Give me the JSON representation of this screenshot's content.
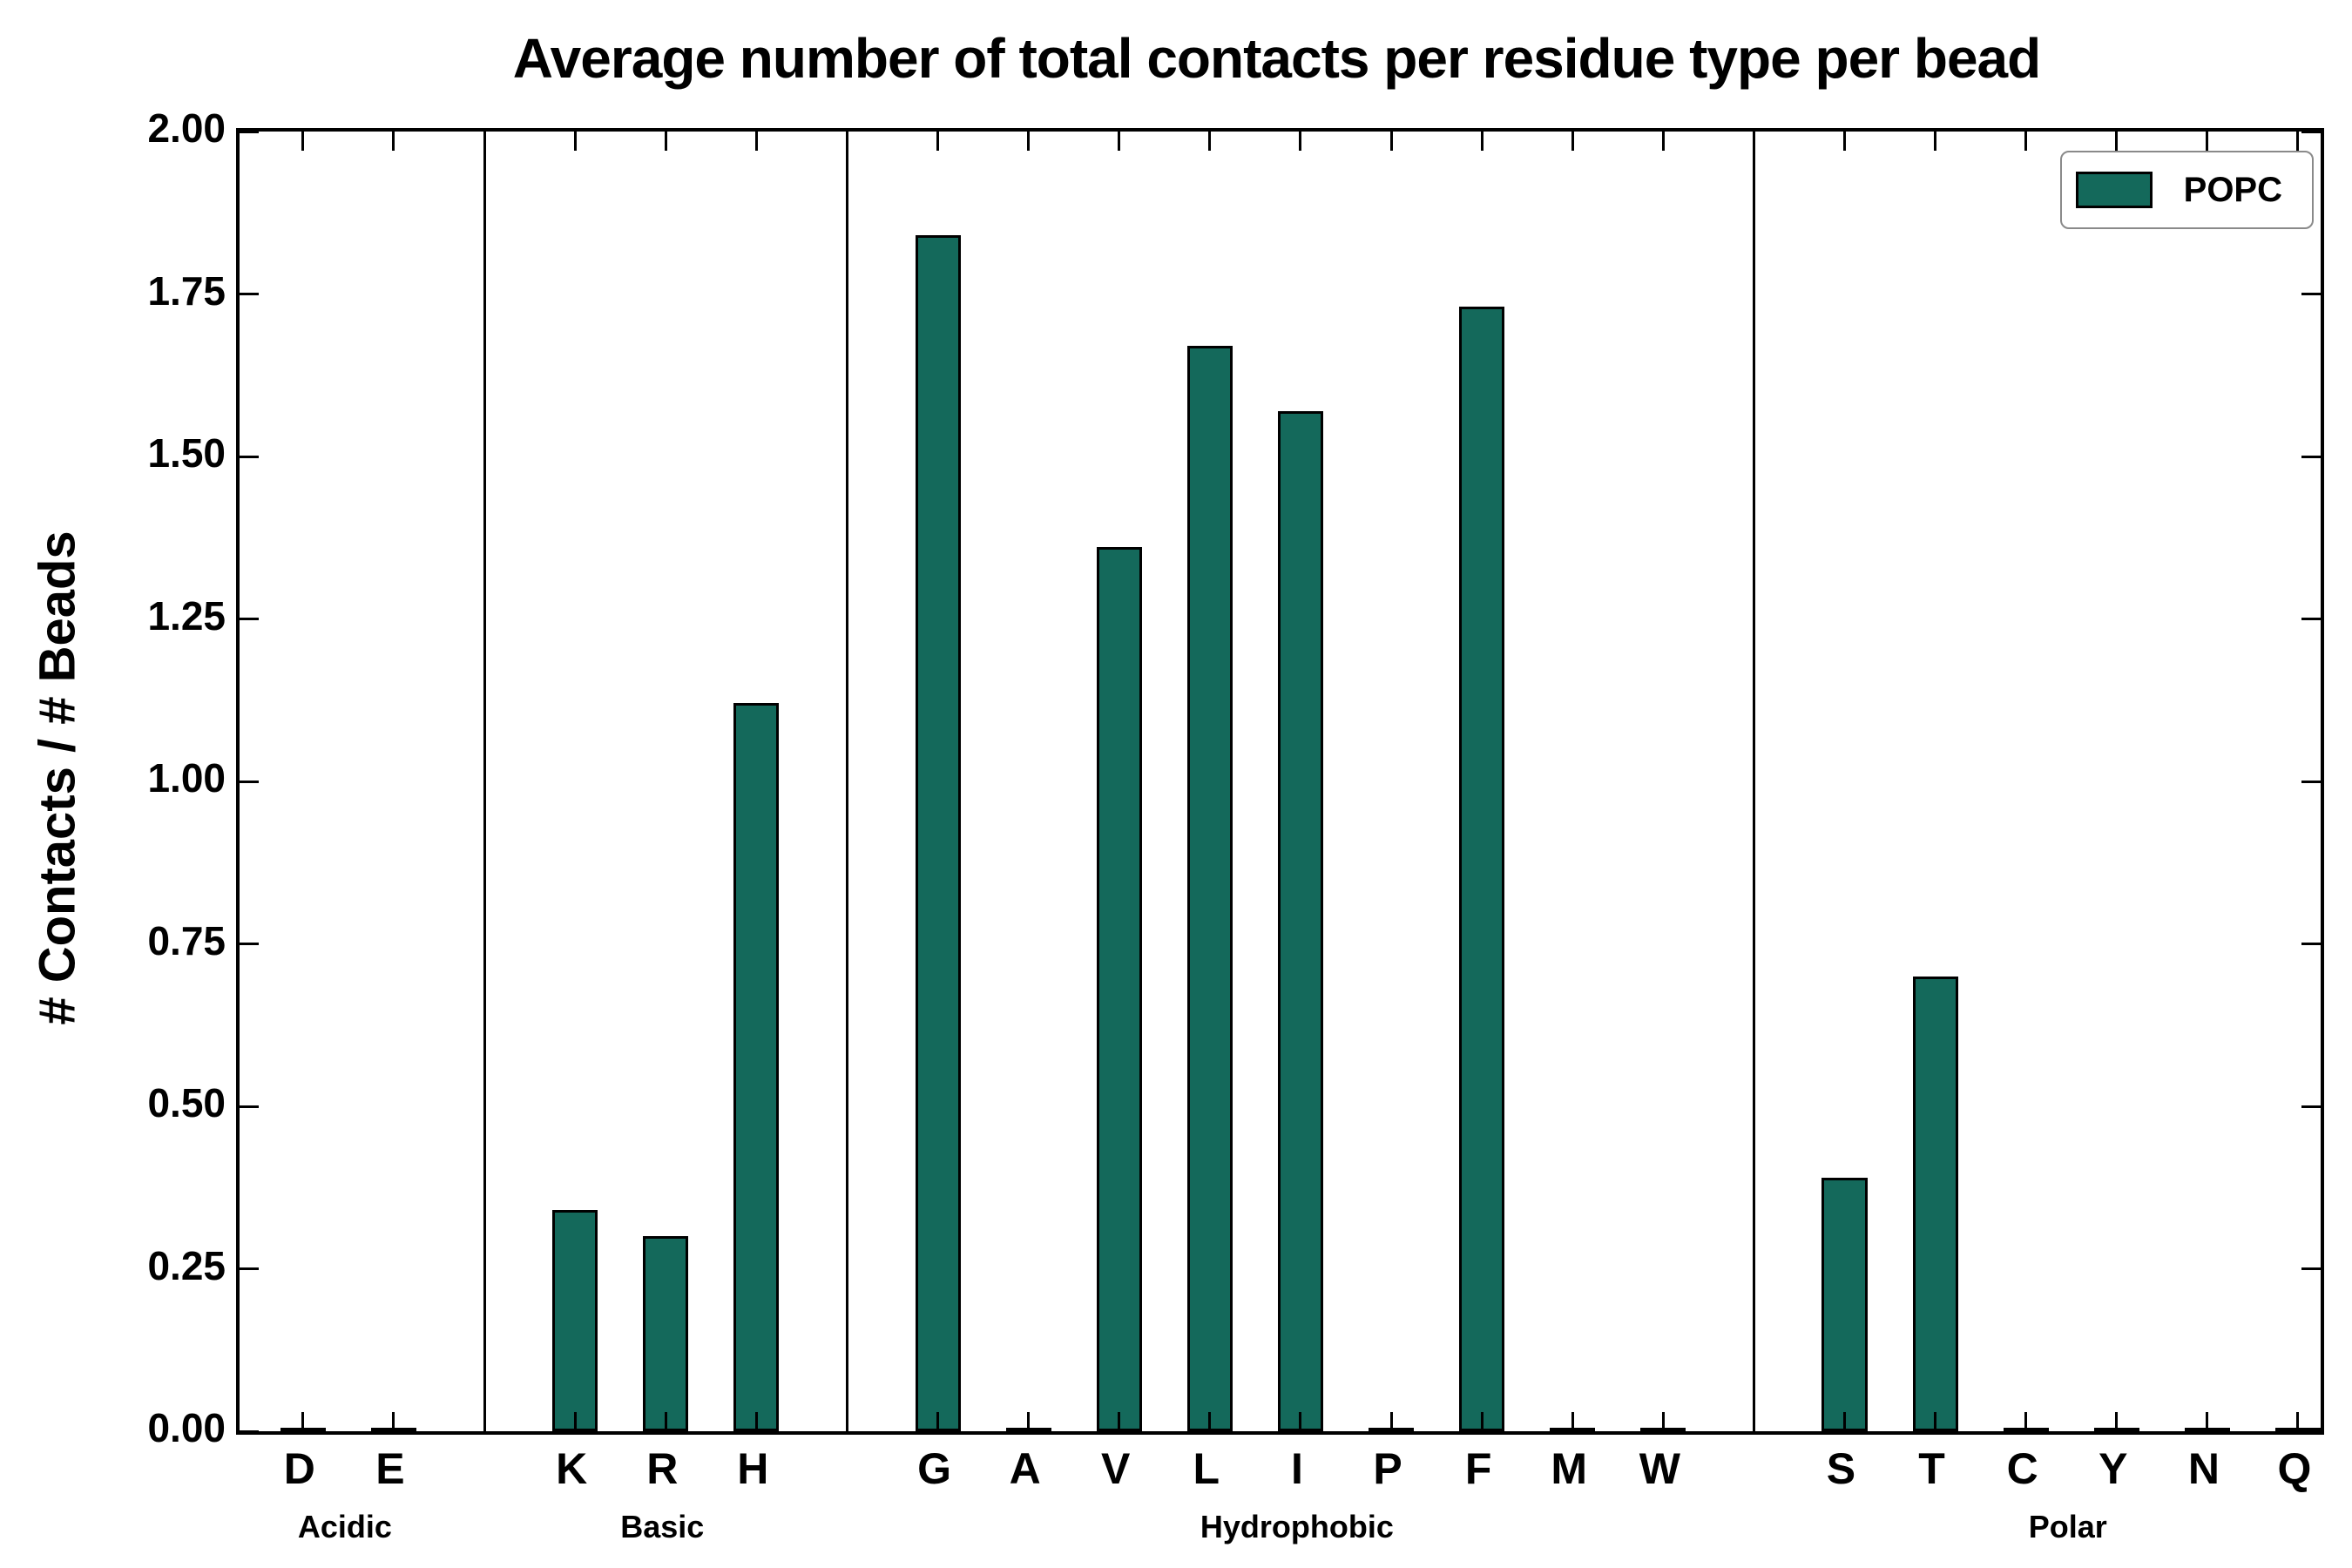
{
  "chart_data": {
    "type": "bar",
    "title": "Average number of total contacts per residue type per bead",
    "ylabel": "# Contacts / # Beads",
    "xlabel": "",
    "ylim": [
      0,
      2.0
    ],
    "yticks": [
      "0.00",
      "0.25",
      "0.50",
      "0.75",
      "1.00",
      "1.25",
      "1.50",
      "1.75",
      "2.00"
    ],
    "grid": false,
    "bar_color": "#14695B",
    "legend": {
      "position": "upper right"
    },
    "series": [
      {
        "name": "POPC"
      }
    ],
    "groups": [
      {
        "label": "Acidic",
        "categories": [
          "D",
          "E"
        ],
        "values": [
          0,
          0
        ]
      },
      {
        "label": "Basic",
        "categories": [
          "K",
          "R",
          "H"
        ],
        "values": [
          0.34,
          0.3,
          1.12
        ]
      },
      {
        "label": "Hydrophobic",
        "categories": [
          "G",
          "A",
          "V",
          "L",
          "I",
          "P",
          "F",
          "M",
          "W"
        ],
        "values": [
          1.84,
          0,
          1.36,
          1.67,
          1.57,
          0,
          1.73,
          0,
          0
        ]
      },
      {
        "label": "Polar",
        "categories": [
          "S",
          "T",
          "C",
          "Y",
          "N",
          "Q"
        ],
        "values": [
          0.39,
          0.7,
          0,
          0,
          0,
          0
        ]
      }
    ]
  }
}
